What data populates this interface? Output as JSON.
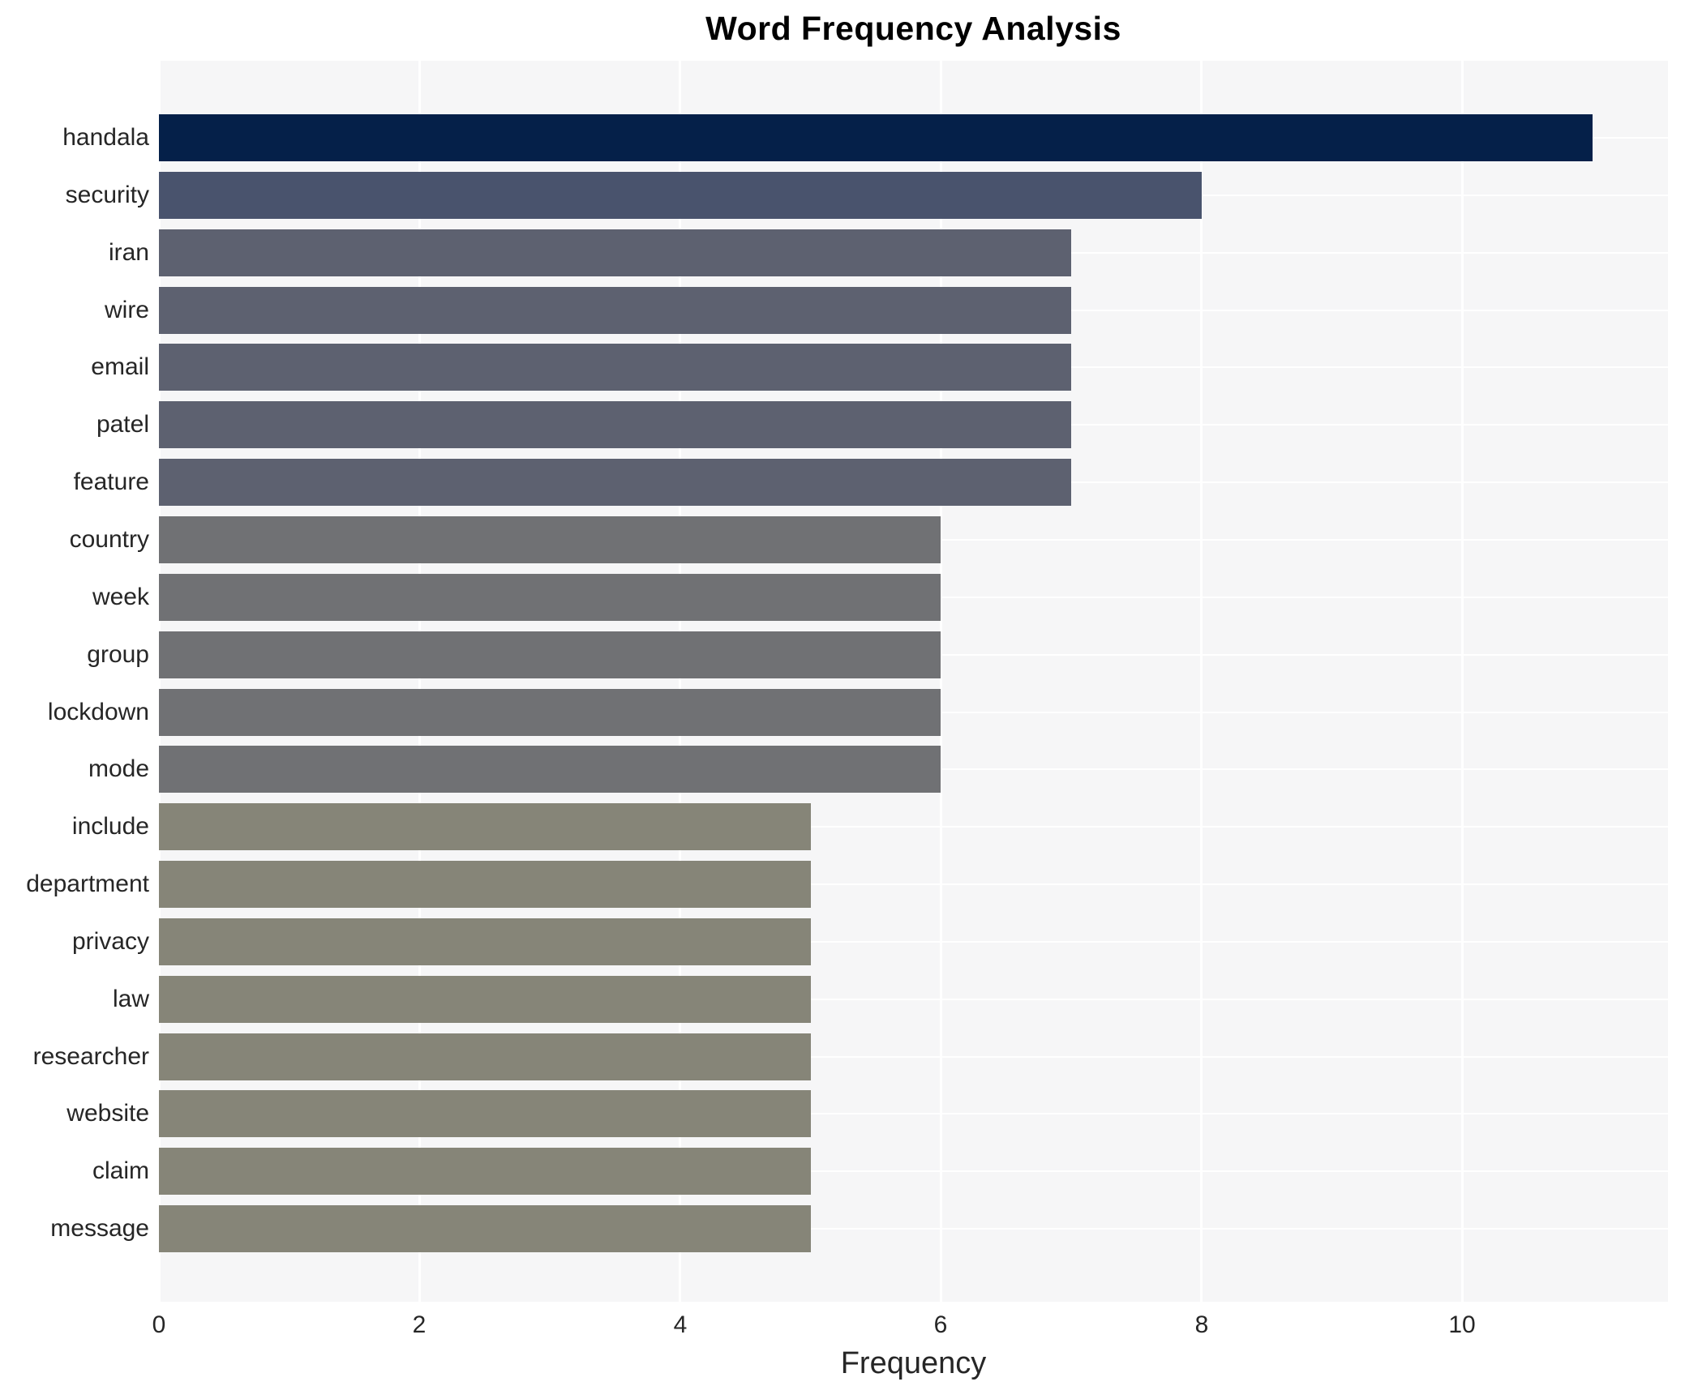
{
  "chart_data": {
    "type": "bar",
    "orientation": "horizontal",
    "title": "Word Frequency Analysis",
    "xlabel": "Frequency",
    "ylabel": "",
    "categories": [
      "handala",
      "security",
      "iran",
      "wire",
      "email",
      "patel",
      "feature",
      "country",
      "week",
      "group",
      "lockdown",
      "mode",
      "include",
      "department",
      "privacy",
      "law",
      "researcher",
      "website",
      "claim",
      "message"
    ],
    "values": [
      11,
      8,
      7,
      7,
      7,
      7,
      7,
      6,
      6,
      6,
      6,
      6,
      5,
      5,
      5,
      5,
      5,
      5,
      5,
      5
    ],
    "bar_colors": [
      "#052049",
      "#49536d",
      "#5d6170",
      "#5d6170",
      "#5d6170",
      "#5d6170",
      "#5d6170",
      "#707174",
      "#707174",
      "#707174",
      "#707174",
      "#707174",
      "#868578",
      "#868578",
      "#868578",
      "#868578",
      "#868578",
      "#868578",
      "#868578",
      "#868578"
    ],
    "xticks": [
      0,
      2,
      4,
      6,
      8,
      10
    ],
    "xlim": [
      0,
      11.58
    ],
    "grid": true,
    "legend": "none",
    "plot_background_color": "#f6f6f7",
    "gridline_color": "#ffffff",
    "text_color": "#262626",
    "title_color": "#000000"
  }
}
